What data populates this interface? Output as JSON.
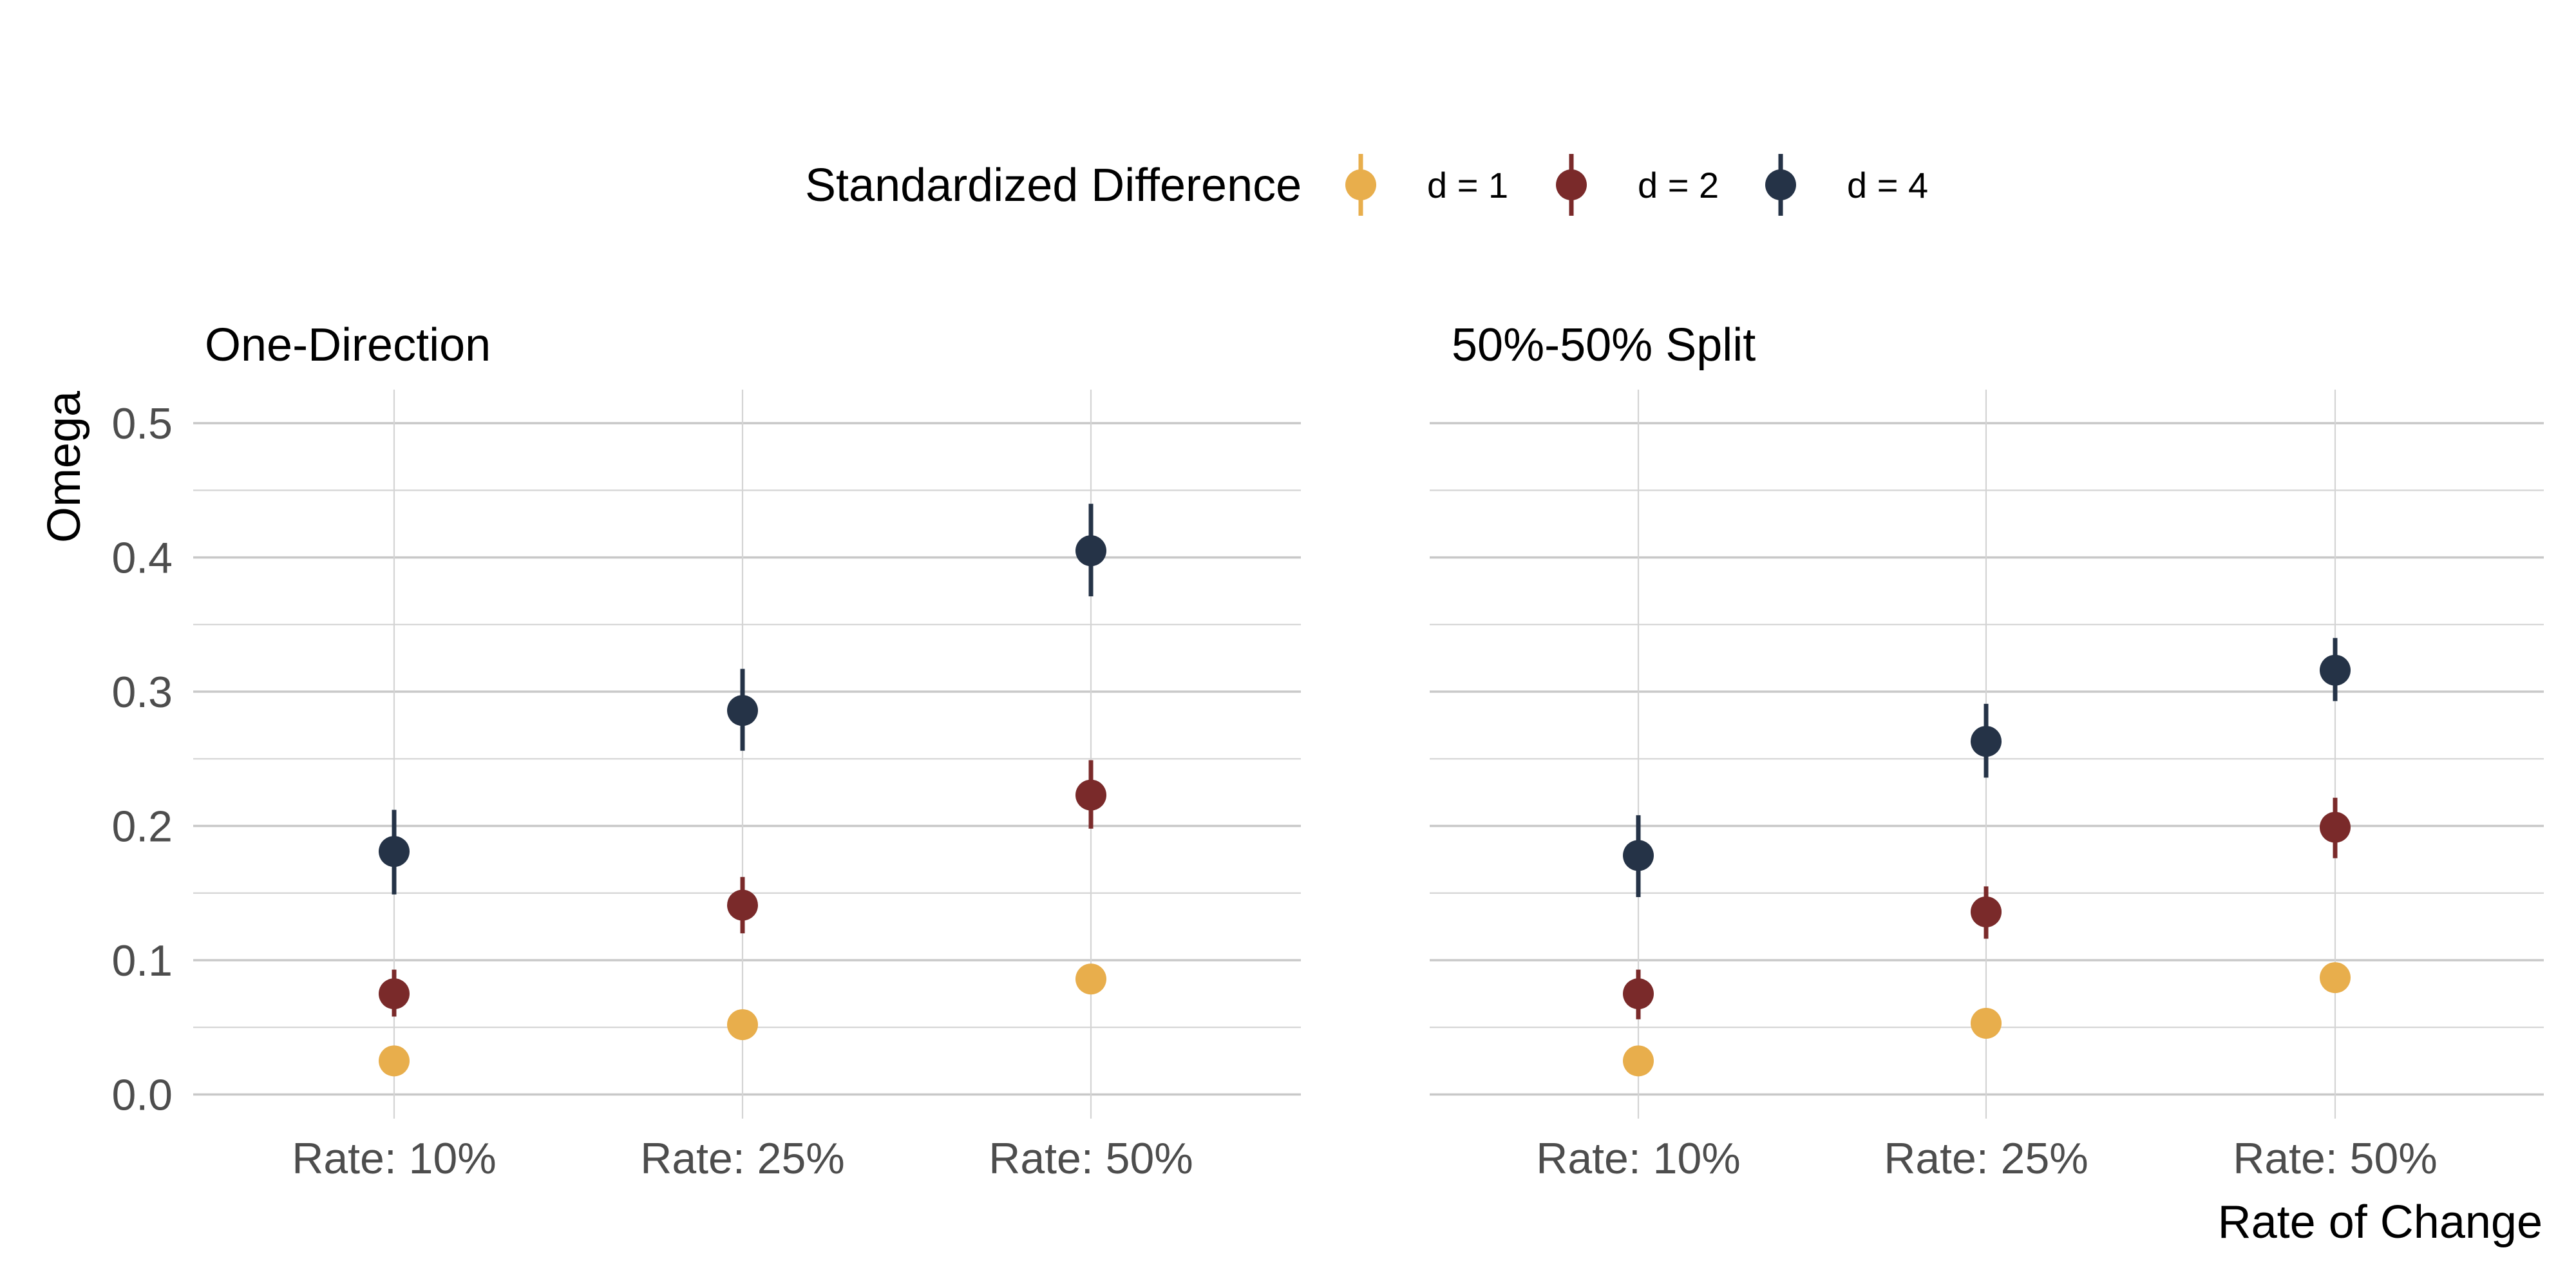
{
  "chart_data": {
    "type": "scatter",
    "legend": {
      "title": "Standardized Difference",
      "placement": "top",
      "entries": [
        "d = 1",
        "d = 2",
        "d = 4"
      ]
    },
    "colors": {
      "d = 1": "#E8AE4C",
      "d = 2": "#7A2A2A",
      "d = 4": "#253347"
    },
    "ylabel": "Omega",
    "xlabel": "Rate of Change",
    "categories": [
      "Rate: 10%",
      "Rate: 25%",
      "Rate: 50%"
    ],
    "ylim": [
      -0.018,
      0.525
    ],
    "yticks": [
      "0.0",
      "0.1",
      "0.2",
      "0.3",
      "0.4",
      "0.5"
    ],
    "grid": true,
    "panels": [
      {
        "title": "One-Direction",
        "series": [
          {
            "name": "d = 1",
            "values": [
              0.025,
              0.052,
              0.086
            ],
            "lower": [
              0.025,
              0.052,
              0.086
            ],
            "upper": [
              0.025,
              0.052,
              0.086
            ]
          },
          {
            "name": "d = 2",
            "values": [
              0.075,
              0.141,
              0.223
            ],
            "lower": [
              0.058,
              0.12,
              0.198
            ],
            "upper": [
              0.093,
              0.162,
              0.249
            ]
          },
          {
            "name": "d = 4",
            "values": [
              0.181,
              0.286,
              0.405
            ],
            "lower": [
              0.149,
              0.256,
              0.371
            ],
            "upper": [
              0.212,
              0.317,
              0.44
            ]
          }
        ]
      },
      {
        "title": "50%-50% Split",
        "series": [
          {
            "name": "d = 1",
            "values": [
              0.025,
              0.053,
              0.087
            ],
            "lower": [
              0.025,
              0.053,
              0.087
            ],
            "upper": [
              0.025,
              0.053,
              0.087
            ]
          },
          {
            "name": "d = 2",
            "values": [
              0.075,
              0.136,
              0.199
            ],
            "lower": [
              0.056,
              0.116,
              0.176
            ],
            "upper": [
              0.093,
              0.155,
              0.221
            ]
          },
          {
            "name": "d = 4",
            "values": [
              0.178,
              0.263,
              0.316
            ],
            "lower": [
              0.147,
              0.236,
              0.293
            ],
            "upper": [
              0.208,
              0.291,
              0.34
            ]
          }
        ]
      }
    ]
  }
}
